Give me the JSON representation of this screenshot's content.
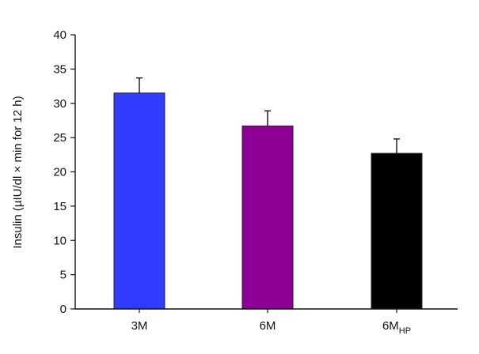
{
  "chart_data": {
    "type": "bar",
    "categories": [
      "3M",
      "6M",
      "6M"
    ],
    "category_subscripts": [
      "",
      "",
      "HP"
    ],
    "values": [
      31.5,
      26.7,
      22.7
    ],
    "errors": [
      2.2,
      2.2,
      2.1
    ],
    "bar_colors": [
      "#2f3cff",
      "#8e0095",
      "#000000"
    ],
    "ylabel": "Insulin (µIU/dl × min for 12 h)",
    "xlabel": "",
    "title": "",
    "ylim": [
      0,
      40
    ],
    "yticks": [
      0,
      5,
      10,
      15,
      20,
      25,
      30,
      35,
      40
    ],
    "grid": false,
    "legend": "none"
  }
}
